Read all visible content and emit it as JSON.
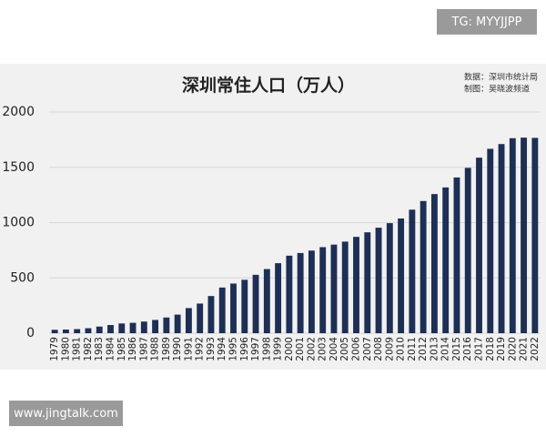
{
  "watermark": "TG: MYYJJPP",
  "site": "www.jingtalk.com",
  "chart_data": {
    "type": "bar",
    "title": "深圳常住人口（万人）",
    "source": [
      "数据：深圳市统计局",
      "制图：吴晓波频道"
    ],
    "categories": [
      "1979",
      "1980",
      "1981",
      "1982",
      "1983",
      "1984",
      "1985",
      "1986",
      "1987",
      "1988",
      "1989",
      "1990",
      "1991",
      "1992",
      "1993",
      "1994",
      "1995",
      "1996",
      "1997",
      "1998",
      "1999",
      "2000",
      "2001",
      "2002",
      "2003",
      "2004",
      "2005",
      "2006",
      "2007",
      "2008",
      "2009",
      "2010",
      "2011",
      "2012",
      "2013",
      "2014",
      "2015",
      "2016",
      "2017",
      "2018",
      "2019",
      "2020",
      "2021",
      "2022"
    ],
    "values": [
      31,
      33,
      37,
      45,
      60,
      74,
      88,
      94,
      105,
      120,
      142,
      168,
      227,
      268,
      336,
      413,
      449,
      483,
      528,
      580,
      633,
      701,
      725,
      747,
      778,
      801,
      828,
      871,
      912,
      954,
      995,
      1037,
      1117,
      1195,
      1258,
      1318,
      1408,
      1495,
      1587,
      1667,
      1710,
      1763,
      1768,
      1766
    ],
    "color": "#1e2f55",
    "ylim": [
      0,
      2000
    ],
    "yticks": [
      0,
      500,
      1000,
      1500,
      2000
    ],
    "grid": true
  }
}
